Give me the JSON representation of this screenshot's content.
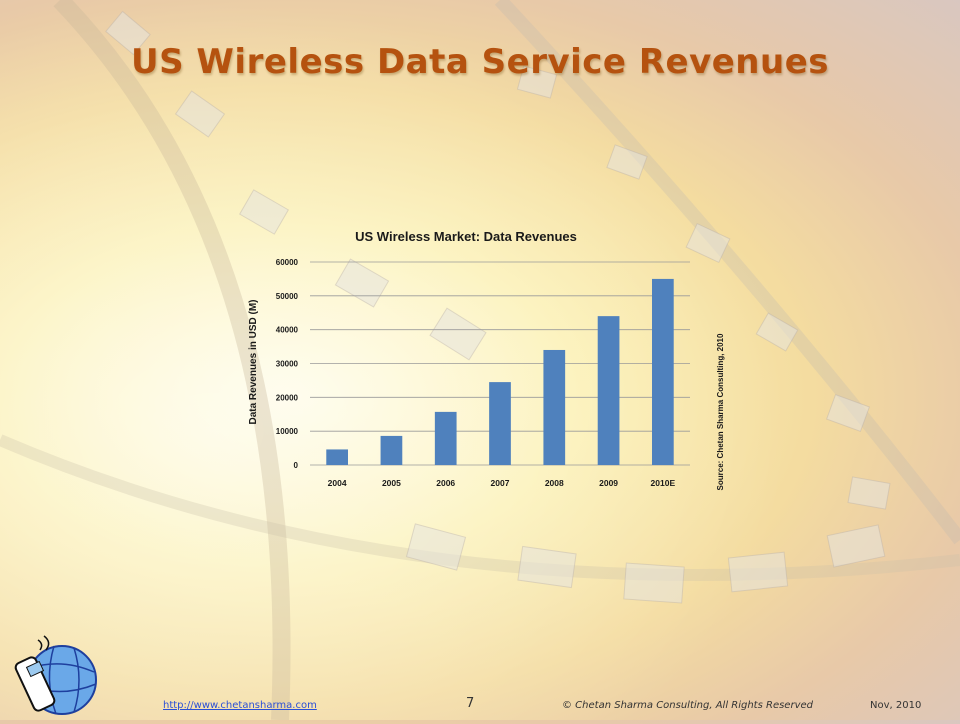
{
  "slide": {
    "title": "US Wireless Data Service Revenues"
  },
  "chart_data": {
    "type": "bar",
    "title": "US Wireless Market: Data Revenues",
    "xlabel": "",
    "ylabel": "Data Revenues in USD (M)",
    "categories": [
      "2004",
      "2005",
      "2006",
      "2007",
      "2008",
      "2009",
      "2010E"
    ],
    "values": [
      4600,
      8600,
      15700,
      24500,
      34000,
      44000,
      55000
    ],
    "ylim": [
      0,
      60000
    ],
    "yticks": [
      0,
      10000,
      20000,
      30000,
      40000,
      50000,
      60000
    ],
    "grid": true,
    "source_note": "Source: Chetan Sharma Consulting, 2010",
    "bar_color": "#4f81bd"
  },
  "footer": {
    "url": "http://www.chetansharma.com",
    "page": "7",
    "copyright": "© Chetan Sharma Consulting, All Rights Reserved",
    "date": "Nov, 2010"
  },
  "colors": {
    "title": "#b5520f",
    "link": "#2b4fd6"
  }
}
